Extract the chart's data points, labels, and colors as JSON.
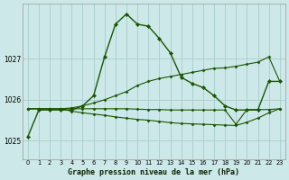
{
  "title": "Graphe pression niveau de la mer (hPa)",
  "background_color": "#cce8e8",
  "grid_color": "#aacccc",
  "line_color": "#1a5500",
  "y_ticks": [
    1025,
    1026,
    1027
  ],
  "ylim": [
    1024.55,
    1028.35
  ],
  "xlim": [
    -0.5,
    23.5
  ],
  "curve_main": [
    1025.1,
    1025.75,
    1025.75,
    1025.75,
    1025.75,
    1025.85,
    1026.1,
    1027.05,
    1027.85,
    1028.1,
    1027.85,
    1027.8,
    1027.5,
    1027.15,
    1026.55,
    1026.4,
    1026.3,
    1026.1,
    1025.85,
    1025.75,
    1025.75,
    1025.75,
    1026.45,
    1026.45
  ],
  "curve_decline": [
    1025.78,
    1025.78,
    1025.78,
    1025.78,
    1025.72,
    1025.68,
    1025.65,
    1025.62,
    1025.58,
    1025.55,
    1025.52,
    1025.5,
    1025.47,
    1025.44,
    1025.42,
    1025.41,
    1025.4,
    1025.39,
    1025.38,
    1025.37,
    1025.45,
    1025.55,
    1025.68,
    1025.78
  ],
  "curve_rise": [
    1025.78,
    1025.78,
    1025.78,
    1025.78,
    1025.8,
    1025.85,
    1025.92,
    1026.0,
    1026.1,
    1026.2,
    1026.35,
    1026.45,
    1026.52,
    1026.57,
    1026.62,
    1026.67,
    1026.72,
    1026.77,
    1026.78,
    1026.82,
    1026.87,
    1026.92,
    1027.05,
    1026.45
  ],
  "curve_flat": [
    1025.78,
    1025.78,
    1025.78,
    1025.78,
    1025.78,
    1025.78,
    1025.78,
    1025.78,
    1025.78,
    1025.78,
    1025.77,
    1025.76,
    1025.76,
    1025.75,
    1025.75,
    1025.75,
    1025.75,
    1025.75,
    1025.75,
    1025.4,
    1025.76,
    1025.76,
    1025.76,
    1025.78
  ]
}
